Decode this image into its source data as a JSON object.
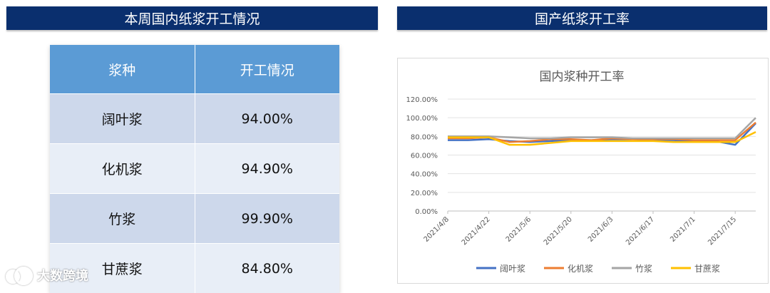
{
  "left_panel": {
    "title": "本周国内纸浆开工情况"
  },
  "right_panel": {
    "title": "国产纸浆开工率"
  },
  "table": {
    "headers": [
      "浆种",
      "开工情况"
    ],
    "rows": [
      {
        "type": "阔叶浆",
        "rate": "94.00%"
      },
      {
        "type": "化机浆",
        "rate": "94.90%"
      },
      {
        "type": "竹浆",
        "rate": "99.90%"
      },
      {
        "type": "甘蔗浆",
        "rate": "84.80%"
      }
    ]
  },
  "chart_data": {
    "type": "line",
    "title": "国内浆种开工率",
    "xlabel": "",
    "ylabel": "",
    "ylim": [
      0,
      120
    ],
    "yticks": [
      "0.00%",
      "20.00%",
      "40.00%",
      "60.00%",
      "80.00%",
      "100.00%",
      "120.00%"
    ],
    "x": [
      "2021/4/8",
      "2021/4/15",
      "2021/4/22",
      "2021/4/29",
      "2021/5/6",
      "2021/5/13",
      "2021/5/20",
      "2021/5/27",
      "2021/6/3",
      "2021/6/10",
      "2021/6/17",
      "2021/6/24",
      "2021/7/1",
      "2021/7/8",
      "2021/7/15",
      "2021/7/22"
    ],
    "xticks": [
      "2021/4/8",
      "2021/4/22",
      "2021/5/6",
      "2021/5/20",
      "2021/6/3",
      "2021/6/17",
      "2021/7/1",
      "2021/7/15"
    ],
    "series": [
      {
        "name": "阔叶浆",
        "color": "#4472c4",
        "values": [
          76,
          76,
          77,
          75,
          74,
          75,
          76,
          76,
          77,
          77,
          76,
          76,
          75,
          75,
          71,
          94
        ]
      },
      {
        "name": "化机浆",
        "color": "#ed7d31",
        "values": [
          78,
          78,
          79,
          74,
          75,
          77,
          77,
          76,
          78,
          77,
          77,
          77,
          76,
          76,
          76,
          94.9
        ]
      },
      {
        "name": "竹浆",
        "color": "#a5a5a5",
        "values": [
          80,
          80,
          80,
          79,
          78,
          78,
          79,
          79,
          79,
          78,
          78,
          78,
          78,
          78,
          78,
          99.9
        ]
      },
      {
        "name": "甘蔗浆",
        "color": "#ffc000",
        "values": [
          79,
          79,
          79,
          71,
          71,
          73,
          75,
          75,
          75,
          75,
          75,
          74,
          74,
          74,
          74,
          84.8
        ]
      }
    ],
    "grid": true,
    "legend": "bottom"
  },
  "watermark": {
    "text": "大数跨境"
  }
}
